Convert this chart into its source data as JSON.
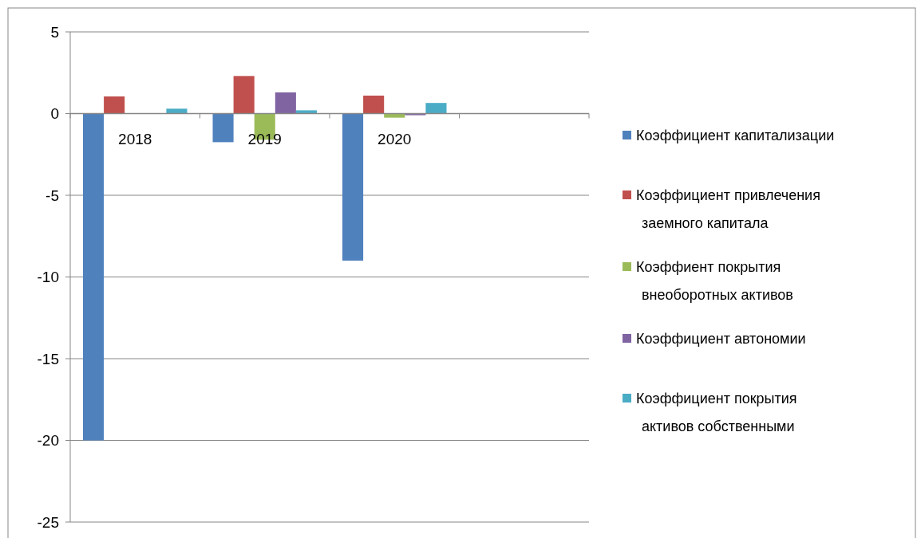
{
  "chart_data": {
    "type": "bar",
    "categories": [
      "2018",
      "2019",
      "2020",
      null
    ],
    "series": [
      {
        "name": "Коэффициент капитализации",
        "color": "#4f81bd",
        "values": [
          -20,
          -1.75,
          -9,
          null
        ]
      },
      {
        "name": "Коэффициент привлечения заемного капитала",
        "color": "#c0504d",
        "values": [
          1.05,
          2.3,
          1.1,
          null
        ]
      },
      {
        "name": "Коэффиент покрытия внеоборотных активов",
        "color": "#9bbb59",
        "values": [
          null,
          -1.6,
          -0.25,
          null
        ]
      },
      {
        "name": "Коэффициент автономии",
        "color": "#8064a2",
        "values": [
          0,
          1.3,
          -0.1,
          null
        ]
      },
      {
        "name": "Коэффициент покрытия активов собственными",
        "color": "#4bacc6",
        "values": [
          0.3,
          0.2,
          0.65,
          null
        ]
      }
    ],
    "ylim": [
      -25,
      5
    ],
    "yticks": [
      -25,
      -20,
      -15,
      -10,
      -5,
      0,
      5
    ],
    "grid": "y",
    "legend": "right"
  }
}
